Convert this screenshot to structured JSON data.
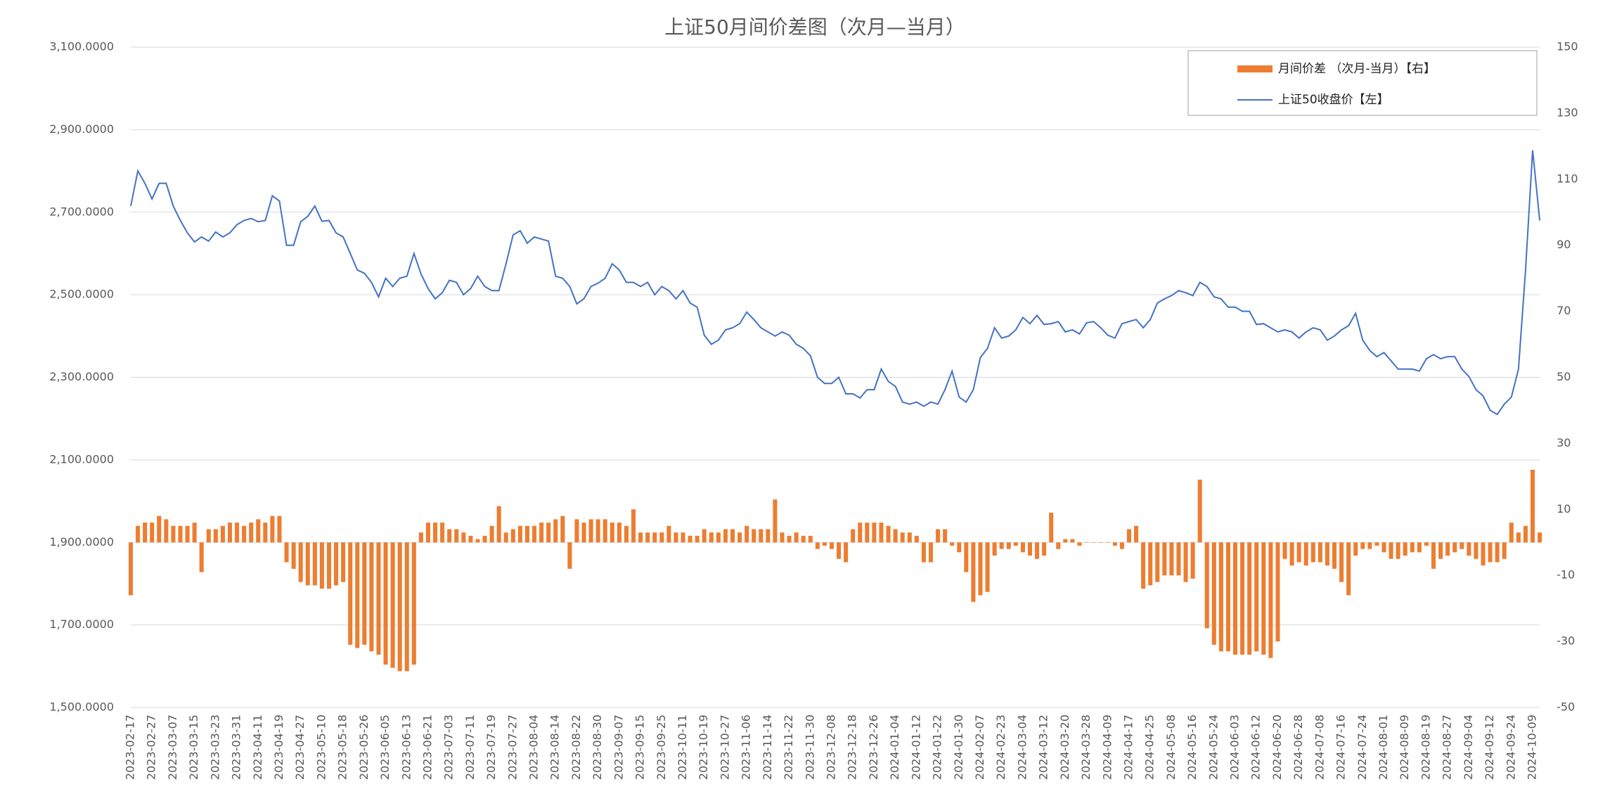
{
  "chart_data": {
    "type": "bar_line_dual",
    "title": "上证50月间价差图（次月—当月）",
    "categories": [
      "2023-02-17",
      null,
      null,
      "2023-02-27",
      null,
      null,
      "2023-03-07",
      null,
      null,
      "2023-03-15",
      null,
      null,
      "2023-03-23",
      null,
      null,
      "2023-03-31",
      null,
      null,
      "2023-04-11",
      null,
      null,
      "2023-04-19",
      null,
      null,
      "2023-04-27",
      null,
      null,
      "2023-05-10",
      null,
      null,
      "2023-05-18",
      null,
      null,
      "2023-05-26",
      null,
      null,
      "2023-06-05",
      null,
      null,
      "2023-06-13",
      null,
      null,
      "2023-06-21",
      null,
      null,
      "2023-07-03",
      null,
      null,
      "2023-07-11",
      null,
      null,
      "2023-07-19",
      null,
      null,
      "2023-07-27",
      null,
      null,
      "2023-08-04",
      null,
      null,
      "2023-08-14",
      null,
      null,
      "2023-08-22",
      null,
      null,
      "2023-08-30",
      null,
      null,
      "2023-09-07",
      null,
      null,
      "2023-09-15",
      null,
      null,
      "2023-09-25",
      null,
      null,
      "2023-10-11",
      null,
      null,
      "2023-10-19",
      null,
      null,
      "2023-10-27",
      null,
      null,
      "2023-11-06",
      null,
      null,
      "2023-11-14",
      null,
      null,
      "2023-11-22",
      null,
      null,
      "2023-11-30",
      null,
      null,
      "2023-12-08",
      null,
      null,
      "2023-12-18",
      null,
      null,
      "2023-12-26",
      null,
      null,
      "2024-01-04",
      null,
      null,
      "2024-01-12",
      null,
      null,
      "2024-01-22",
      null,
      null,
      "2024-01-30",
      null,
      null,
      "2024-02-07",
      null,
      null,
      "2024-02-23",
      null,
      null,
      "2024-03-04",
      null,
      null,
      "2024-03-12",
      null,
      null,
      "2024-03-20",
      null,
      null,
      "2024-03-28",
      null,
      null,
      "2024-04-09",
      null,
      null,
      "2024-04-17",
      null,
      null,
      "2024-04-25",
      null,
      null,
      "2024-05-08",
      null,
      null,
      "2024-05-16",
      null,
      null,
      "2024-05-24",
      null,
      null,
      "2024-06-03",
      null,
      null,
      "2024-06-12",
      null,
      null,
      "2024-06-20",
      null,
      null,
      "2024-06-28",
      null,
      null,
      "2024-07-08",
      null,
      null,
      "2024-07-16",
      null,
      null,
      "2024-07-24",
      null,
      null,
      "2024-08-01",
      null,
      null,
      "2024-08-09",
      null,
      null,
      "2024-08-19",
      null,
      null,
      "2024-08-27",
      null,
      null,
      "2024-09-04",
      null,
      null,
      "2024-09-12",
      null,
      null,
      "2024-09-24",
      null,
      null,
      "2024-10-09",
      null
    ],
    "series": [
      {
        "name": "月间价差 （次月-当月）【右】",
        "type": "bar",
        "axis": "y2",
        "color": "#ed7d31",
        "values": [
          -16,
          5,
          6,
          6,
          8,
          7,
          5,
          5,
          5,
          6,
          -9,
          4,
          4,
          5,
          6,
          6,
          5,
          6,
          7,
          6,
          8,
          8,
          -6,
          -8,
          -12,
          -13,
          -13,
          -14,
          -14,
          -13,
          -12,
          -31,
          -32,
          -31,
          -33,
          -34,
          -37,
          -38,
          -39,
          -39,
          -37,
          3,
          6,
          6,
          6,
          4,
          4,
          3,
          2,
          1,
          2,
          5,
          11,
          3,
          4,
          5,
          5,
          5,
          6,
          6,
          7,
          8,
          -8,
          7,
          6,
          7,
          7,
          7,
          6,
          6,
          5,
          10,
          3,
          3,
          3,
          3,
          5,
          3,
          3,
          2,
          2,
          4,
          3,
          3,
          4,
          4,
          3,
          5,
          4,
          4,
          4,
          13,
          3,
          2,
          3,
          2,
          2,
          -2,
          -1,
          -2,
          -5,
          -6,
          4,
          6,
          6,
          6,
          6,
          5,
          4,
          3,
          3,
          2,
          -6,
          -6,
          4,
          4,
          -1,
          -3,
          -9,
          -18,
          -16,
          -15,
          -4,
          -2,
          -2,
          -1,
          -3,
          -4,
          -5,
          -4,
          9,
          -2,
          1,
          1,
          -1,
          0,
          0,
          0,
          0,
          -1,
          -2,
          4,
          5,
          -14,
          -13,
          -12,
          -10,
          -10,
          -10,
          -12,
          -11,
          19,
          -26,
          -31,
          -33,
          -33,
          -34,
          -34,
          -34,
          -33,
          -34,
          -35,
          -30,
          -5,
          -7,
          -6,
          -7,
          -6,
          -6,
          -7,
          -8,
          -12,
          -16,
          -4,
          -2,
          -2,
          -1,
          -3,
          -5,
          -5,
          -4,
          -3,
          -3,
          -1,
          -8,
          -5,
          -4,
          -3,
          -2,
          -4,
          -5,
          -7,
          -6,
          -6,
          -5,
          6,
          3,
          5,
          22,
          3
        ]
      },
      {
        "name": "上证50收盘价【左】",
        "type": "line",
        "axis": "y",
        "color": "#4472c4",
        "values": [
          2715,
          2800,
          2770,
          2732,
          2770,
          2770,
          2715,
          2680,
          2650,
          2628,
          2640,
          2630,
          2652,
          2640,
          2650,
          2670,
          2680,
          2685,
          2677,
          2680,
          2740,
          2727,
          2620,
          2620,
          2677,
          2690,
          2715,
          2678,
          2680,
          2650,
          2640,
          2600,
          2560,
          2552,
          2530,
          2495,
          2540,
          2520,
          2540,
          2545,
          2600,
          2550,
          2515,
          2490,
          2505,
          2535,
          2530,
          2500,
          2515,
          2545,
          2520,
          2510,
          2510,
          2575,
          2645,
          2655,
          2625,
          2640,
          2635,
          2630,
          2545,
          2540,
          2520,
          2478,
          2490,
          2520,
          2528,
          2540,
          2575,
          2560,
          2530,
          2530,
          2520,
          2530,
          2500,
          2520,
          2510,
          2490,
          2510,
          2480,
          2470,
          2402,
          2380,
          2390,
          2415,
          2420,
          2430,
          2458,
          2440,
          2420,
          2410,
          2400,
          2410,
          2402,
          2380,
          2370,
          2352,
          2300,
          2285,
          2285,
          2300,
          2260,
          2260,
          2250,
          2270,
          2270,
          2320,
          2290,
          2278,
          2240,
          2235,
          2240,
          2230,
          2240,
          2235,
          2270,
          2315,
          2252,
          2240,
          2270,
          2348,
          2370,
          2420,
          2395,
          2400,
          2415,
          2445,
          2430,
          2450,
          2428,
          2430,
          2435,
          2410,
          2415,
          2405,
          2432,
          2435,
          2420,
          2402,
          2395,
          2430,
          2435,
          2440,
          2420,
          2440,
          2480,
          2490,
          2498,
          2510,
          2505,
          2498,
          2530,
          2520,
          2495,
          2490,
          2470,
          2470,
          2460,
          2460,
          2428,
          2430,
          2420,
          2410,
          2415,
          2410,
          2395,
          2410,
          2420,
          2415,
          2390,
          2400,
          2415,
          2425,
          2455,
          2390,
          2365,
          2350,
          2360,
          2340,
          2320,
          2320,
          2320,
          2315,
          2345,
          2355,
          2345,
          2350,
          2350,
          2320,
          2302,
          2270,
          2255,
          2220,
          2210,
          2235,
          2252,
          2320,
          2560,
          2850,
          2680
        ]
      }
    ],
    "ylim": [
      1500,
      3100
    ],
    "yticks": [
      {
        "value": 1500,
        "label": "1,500.0000"
      },
      {
        "value": 1700,
        "label": "1,700.0000"
      },
      {
        "value": 1900,
        "label": "1,900.0000"
      },
      {
        "value": 2100,
        "label": "2,100.0000"
      },
      {
        "value": 2300,
        "label": "2,300.0000"
      },
      {
        "value": 2500,
        "label": "2,500.0000"
      },
      {
        "value": 2700,
        "label": "2,700.0000"
      },
      {
        "value": 2900,
        "label": "2,900.0000"
      },
      {
        "value": 3100,
        "label": "3,100.0000"
      }
    ],
    "y2lim": [
      -50,
      150
    ],
    "y2ticks": [
      -50,
      -30,
      -10,
      10,
      30,
      50,
      70,
      90,
      110,
      130,
      150
    ],
    "grid": true,
    "legend": "upper right"
  }
}
